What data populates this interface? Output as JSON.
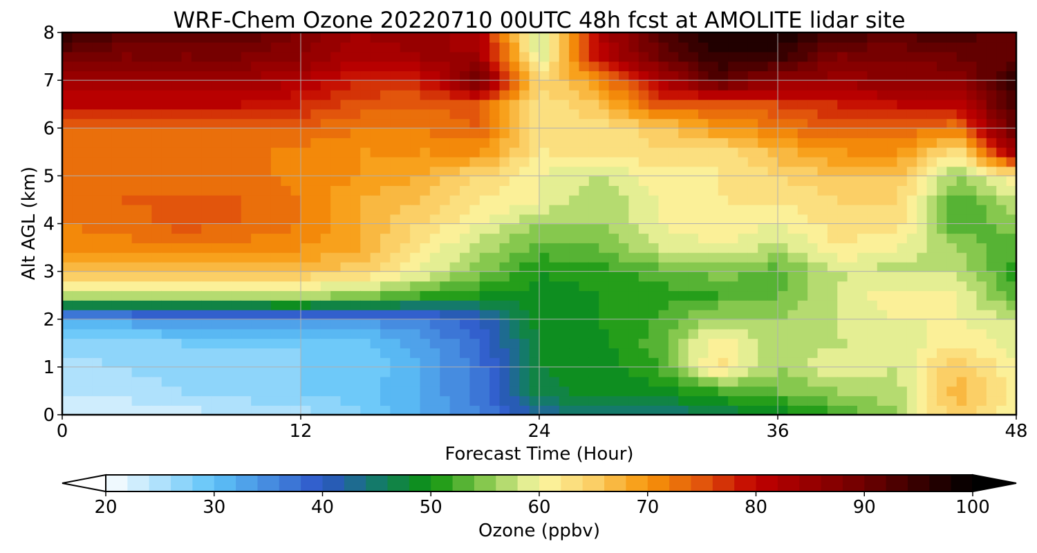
{
  "chart_data": {
    "type": "heatmap",
    "title": "WRF-Chem Ozone  20220710 00UTC 48h fcst at AMOLITE lidar site",
    "xlabel": "Forecast Time (Hour)",
    "ylabel": "Alt AGL (km)",
    "xlim": [
      0,
      48
    ],
    "ylim": [
      0,
      8
    ],
    "xticks": [
      0,
      12,
      24,
      36,
      48
    ],
    "xtick_labels": [
      "0",
      "12",
      "24",
      "36",
      "48"
    ],
    "yticks": [
      0,
      1,
      2,
      3,
      4,
      5,
      6,
      7,
      8
    ],
    "ytick_labels": [
      "0",
      "1",
      "2",
      "3",
      "4",
      "5",
      "6",
      "7",
      "8"
    ],
    "grid": true,
    "x": [
      0,
      3,
      6,
      9,
      12,
      15,
      18,
      21,
      24,
      27,
      30,
      33,
      36,
      39,
      42,
      45,
      48
    ],
    "y": [
      0,
      0.5,
      1,
      1.5,
      2,
      2.5,
      3,
      3.5,
      4,
      4.5,
      5,
      5.5,
      6,
      6.5,
      7,
      7.5,
      8
    ],
    "z": [
      [
        22,
        22,
        23,
        24,
        25,
        28,
        32,
        36,
        42,
        45,
        44,
        46,
        48,
        52,
        56,
        66,
        60
      ],
      [
        24,
        25,
        26,
        27,
        28,
        29,
        32,
        37,
        47,
        49,
        49,
        52,
        54,
        56,
        57,
        67,
        61
      ],
      [
        25,
        26,
        27,
        27,
        28,
        28,
        32,
        37,
        48,
        49,
        52,
        63,
        56,
        60,
        58,
        66,
        60
      ],
      [
        27,
        27,
        28,
        28,
        28,
        29,
        33,
        38,
        48,
        49,
        53,
        62,
        56,
        58,
        58,
        62,
        59
      ],
      [
        32,
        33,
        34,
        34,
        35,
        34,
        36,
        40,
        49,
        50,
        52,
        57,
        56,
        58,
        60,
        60,
        58
      ],
      [
        57,
        57,
        57,
        57,
        57,
        55,
        52,
        50,
        49,
        50,
        51,
        52,
        54,
        58,
        62,
        60,
        53
      ],
      [
        66,
        66,
        66,
        66,
        66,
        65,
        60,
        55,
        50,
        51,
        53,
        55,
        53,
        58,
        57,
        58,
        51
      ],
      [
        70,
        71,
        71,
        71,
        70,
        68,
        62,
        57,
        53,
        54,
        58,
        60,
        57,
        62,
        60,
        56,
        52
      ],
      [
        72,
        73,
        75,
        74,
        72,
        68,
        64,
        60,
        56,
        56,
        60,
        62,
        60,
        63,
        63,
        52,
        55
      ],
      [
        73,
        74,
        74,
        74,
        72,
        68,
        66,
        62,
        60,
        56,
        60,
        62,
        62,
        64,
        64,
        52,
        58
      ],
      [
        73,
        74,
        73,
        73,
        71,
        70,
        68,
        64,
        60,
        58,
        61,
        62,
        64,
        66,
        66,
        56,
        62
      ],
      [
        72,
        73,
        73,
        73,
        71,
        70,
        70,
        70,
        62,
        62,
        64,
        62,
        67,
        70,
        70,
        62,
        85
      ],
      [
        73,
        74,
        74,
        74,
        74,
        72,
        72,
        74,
        62,
        63,
        65,
        70,
        72,
        75,
        74,
        72,
        92
      ],
      [
        80,
        80,
        80,
        80,
        78,
        75,
        74,
        75,
        62,
        66,
        75,
        74,
        76,
        78,
        80,
        80,
        94
      ],
      [
        84,
        84,
        84,
        84,
        82,
        78,
        78,
        90,
        64,
        70,
        82,
        92,
        86,
        85,
        86,
        86,
        96
      ],
      [
        90,
        88,
        88,
        88,
        86,
        82,
        84,
        84,
        58,
        80,
        90,
        96,
        95,
        88,
        88,
        90,
        90
      ],
      [
        96,
        92,
        91,
        92,
        88,
        84,
        86,
        82,
        56,
        82,
        92,
        98,
        98,
        94,
        92,
        94,
        90
      ]
    ],
    "colorbar": {
      "label": "Ozone  (ppbv)",
      "min": 20,
      "max": 100,
      "ticks": [
        20,
        30,
        40,
        50,
        60,
        70,
        80,
        90,
        100
      ],
      "tick_labels": [
        "20",
        "30",
        "40",
        "50",
        "60",
        "70",
        "80",
        "90",
        "100"
      ],
      "extend": "both",
      "color_stops": [
        {
          "v": 20,
          "c": "#ffffff"
        },
        {
          "v": 30,
          "c": "#5ec3f8"
        },
        {
          "v": 40,
          "c": "#2d55c8"
        },
        {
          "v": 45,
          "c": "#147a6a"
        },
        {
          "v": 50,
          "c": "#0d930d"
        },
        {
          "v": 55,
          "c": "#86c84e"
        },
        {
          "v": 60,
          "c": "#fbf8a4"
        },
        {
          "v": 65,
          "c": "#fbcf66"
        },
        {
          "v": 70,
          "c": "#f7960a"
        },
        {
          "v": 75,
          "c": "#e2550c"
        },
        {
          "v": 80,
          "c": "#c00000"
        },
        {
          "v": 90,
          "c": "#6e0000"
        },
        {
          "v": 100,
          "c": "#000000"
        }
      ]
    }
  }
}
